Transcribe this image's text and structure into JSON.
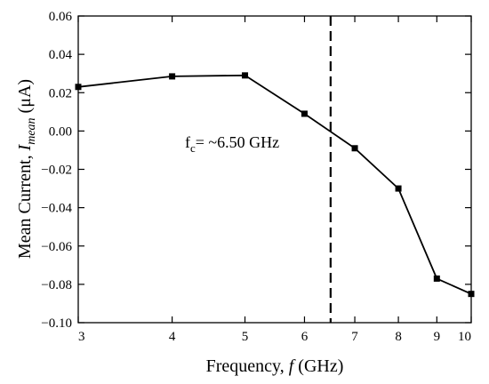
{
  "chart_data": {
    "type": "line",
    "xscale": "log",
    "x_ticks": [
      "3",
      "4",
      "5",
      "6",
      "7",
      "8",
      "9",
      "10"
    ],
    "y_ticks": [
      "0.06",
      "0.04",
      "0.02",
      "0.00",
      "−0.02",
      "−0.04",
      "−0.06",
      "−0.08",
      "−0.10"
    ],
    "xlim": [
      3,
      10
    ],
    "ylim": [
      -0.1,
      0.06
    ],
    "xlabel": {
      "main": "Frequency, ",
      "var": "f",
      "unit": " (GHz)"
    },
    "ylabel": {
      "main": "Mean Current, ",
      "var": "I",
      "sub": "mean",
      "unit": " (μA)"
    },
    "grid": false,
    "series": [
      {
        "x": [
          3,
          4,
          5,
          6,
          7,
          8,
          9,
          10
        ],
        "y": [
          0.023,
          0.0285,
          0.029,
          0.009,
          -0.009,
          -0.03,
          -0.077,
          -0.085
        ],
        "marker": "square",
        "color": "#000000"
      }
    ],
    "vline": {
      "x": 6.5,
      "style": "dashed"
    },
    "annotation": {
      "main": "f",
      "sub": "c",
      "rest": "= ~6.50 GHz",
      "x": 6.5,
      "y": -0.005
    }
  }
}
